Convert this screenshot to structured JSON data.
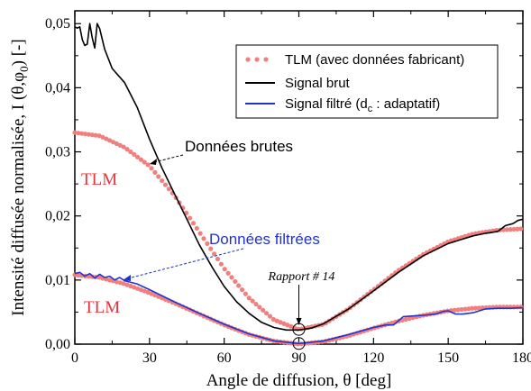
{
  "chart_data": {
    "type": "line",
    "xlabel_text": "Angle de diffusion, θ [deg]",
    "ylabel_text": "Intensité diffusée normalisée, I (θ,φ",
    "ylabel_sub": "0",
    "ylabel_end": ") [-]",
    "xlim": [
      0,
      180
    ],
    "ylim": [
      0,
      0.052
    ],
    "xticks": [
      0,
      30,
      60,
      90,
      120,
      150,
      180
    ],
    "xtick_labels": [
      "0",
      "30",
      "60",
      "90",
      "120",
      "150",
      "180"
    ],
    "yticks": [
      0,
      0.01,
      0.02,
      0.03,
      0.04,
      0.05
    ],
    "ytick_labels": [
      "0,00",
      "0,01",
      "0,02",
      "0,03",
      "0,04",
      "0,05"
    ],
    "grid": false,
    "legend_position": "top-right",
    "colors": {
      "tlm": "#f08080",
      "brut": "#000000",
      "filtre": "#2233cc",
      "anno_black": "#000000",
      "anno_blue": "#2233cc",
      "anno_red": "#e8323c"
    },
    "series": [
      {
        "name": "TLM (avec données fabricant)",
        "style": "dots",
        "group": "upper",
        "x": [
          0,
          10,
          20,
          30,
          40,
          50,
          60,
          70,
          80,
          90,
          100,
          110,
          120,
          130,
          140,
          150,
          160,
          170,
          180
        ],
        "y": [
          0.033,
          0.0325,
          0.0307,
          0.0278,
          0.0232,
          0.0175,
          0.0118,
          0.0072,
          0.0038,
          0.0023,
          0.0031,
          0.0055,
          0.0085,
          0.0115,
          0.014,
          0.016,
          0.0172,
          0.0178,
          0.018
        ]
      },
      {
        "name": "TLM (avec données fabricant)",
        "style": "dots",
        "group": "lower",
        "x": [
          0,
          10,
          20,
          30,
          40,
          50,
          60,
          70,
          80,
          90,
          100,
          110,
          120,
          130,
          140,
          150,
          160,
          170,
          180
        ],
        "y": [
          0.0108,
          0.0104,
          0.0094,
          0.008,
          0.0064,
          0.0047,
          0.003,
          0.0015,
          0.0005,
          0.0,
          0.0004,
          0.0013,
          0.0025,
          0.0036,
          0.0045,
          0.0052,
          0.0056,
          0.0058,
          0.0058
        ]
      },
      {
        "name": "Signal brut",
        "style": "line",
        "x": [
          0,
          1,
          2,
          3,
          4,
          5,
          6,
          7,
          8,
          9,
          10,
          12,
          15,
          20,
          25,
          30,
          35,
          40,
          45,
          50,
          55,
          60,
          65,
          70,
          75,
          80,
          85,
          90,
          95,
          100,
          110,
          120,
          130,
          140,
          150,
          160,
          165,
          167,
          170,
          173,
          176,
          178,
          180
        ],
        "y": [
          0.0495,
          0.0493,
          0.0495,
          0.0475,
          0.0466,
          0.0468,
          0.05,
          0.0478,
          0.0462,
          0.05,
          0.0492,
          0.046,
          0.043,
          0.0408,
          0.037,
          0.032,
          0.0275,
          0.0235,
          0.0195,
          0.0155,
          0.0121,
          0.009,
          0.0066,
          0.0048,
          0.0034,
          0.0026,
          0.0022,
          0.0022,
          0.0025,
          0.0032,
          0.0055,
          0.0083,
          0.0112,
          0.0138,
          0.0157,
          0.0169,
          0.0173,
          0.0174,
          0.0176,
          0.0185,
          0.0188,
          0.0193,
          0.0195
        ]
      },
      {
        "name": "Signal filtré (d",
        "name_sub": "c",
        "name_end": " : adaptatif)",
        "style": "line",
        "x": [
          0,
          2,
          4,
          6,
          8,
          10,
          12,
          14,
          16,
          18,
          20,
          25,
          30,
          40,
          50,
          60,
          70,
          80,
          90,
          100,
          110,
          120,
          125,
          128,
          132,
          136,
          140,
          145,
          148,
          150,
          153,
          156,
          160,
          165,
          170,
          175,
          180
        ],
        "y": [
          0.011,
          0.0112,
          0.0106,
          0.011,
          0.0103,
          0.0109,
          0.0104,
          0.0106,
          0.01,
          0.0104,
          0.0099,
          0.0094,
          0.0085,
          0.0066,
          0.0048,
          0.0031,
          0.0016,
          0.0005,
          0.0001,
          0.0005,
          0.0015,
          0.0026,
          0.003,
          0.003,
          0.0043,
          0.0044,
          0.0045,
          0.0047,
          0.0051,
          0.0052,
          0.0047,
          0.0047,
          0.0049,
          0.0055,
          0.0056,
          0.0056,
          0.0057
        ]
      }
    ],
    "annotations": {
      "donnees_brutes": "Données brutes",
      "donnees_filtrees": "Données filtrées",
      "tlm_upper": "TLM",
      "tlm_lower": "TLM",
      "rapport": "Rapport # 14"
    }
  }
}
